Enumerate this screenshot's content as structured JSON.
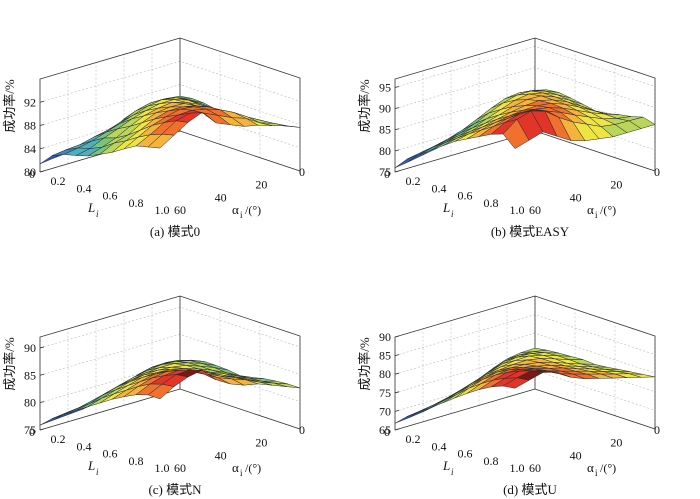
{
  "chart_data": [
    {
      "type": "surface3d",
      "caption": "(a) 模式0",
      "zlabel": "成功率/%",
      "xlabel_main": "α",
      "xlabel_sub": "i",
      "xlabel_unit": "/(°)",
      "ylabel_main": "L",
      "ylabel_sub": "i",
      "z_ticks": [
        "80",
        "84",
        "88",
        "92"
      ],
      "z_tick_values": [
        80,
        84,
        88,
        92
      ],
      "zlim": [
        80,
        96
      ],
      "alpha_ticks": [
        "0",
        "20",
        "40",
        "60"
      ],
      "L_ticks": [
        "0",
        "0.2",
        "0.4",
        "0.6",
        "0.8",
        "1.0"
      ],
      "alpha_range": [
        0,
        60
      ],
      "L_range": [
        0,
        1
      ],
      "grid_alpha": [
        0,
        6,
        12,
        18,
        24,
        30,
        36,
        42,
        48,
        54,
        60
      ],
      "grid_L": [
        0,
        0.1,
        0.2,
        0.3,
        0.4,
        0.5,
        0.6,
        0.7,
        0.8,
        0.9,
        1.0
      ],
      "z": [
        [
          86.0,
          86.3,
          86.2,
          85.8,
          85.3,
          85.2,
          86.0,
          86.3,
          86.5,
          87.0,
          87.5
        ],
        [
          86.3,
          87.1,
          87.4,
          87.4,
          87.3,
          87.2,
          87.6,
          87.8,
          88.0,
          88.2,
          88.5
        ],
        [
          86.2,
          87.6,
          88.5,
          88.8,
          88.7,
          88.6,
          88.8,
          89.0,
          89.3,
          89.0,
          89.2
        ],
        [
          85.8,
          87.6,
          88.9,
          89.6,
          89.8,
          89.8,
          90.0,
          90.5,
          90.8,
          90.5,
          90.0
        ],
        [
          84.9,
          87.0,
          88.5,
          89.6,
          90.5,
          91.0,
          91.3,
          91.8,
          92.0,
          91.3,
          90.5
        ],
        [
          83.5,
          85.9,
          87.7,
          89.1,
          90.2,
          91.1,
          91.8,
          92.5,
          92.8,
          92.4,
          91.5
        ],
        [
          82.6,
          85.1,
          86.9,
          88.4,
          89.6,
          90.8,
          91.8,
          92.8,
          93.3,
          93.5,
          92.5
        ],
        [
          82.3,
          84.6,
          86.1,
          87.4,
          88.5,
          89.8,
          91.1,
          92.2,
          93.2,
          94.2,
          95.0
        ],
        [
          81.9,
          84.0,
          85.3,
          86.5,
          87.2,
          88.4,
          89.9,
          91.4,
          92.6,
          93.6,
          94.0
        ],
        [
          81.7,
          83.8,
          84.8,
          85.4,
          86.3,
          87.7,
          88.8,
          90.1,
          91.2,
          92.0,
          92.5
        ],
        [
          81.4,
          83.5,
          84.4,
          84.9,
          85.5,
          86.5,
          87.5,
          88.8,
          90.0,
          90.5,
          91.0
        ]
      ]
    },
    {
      "type": "surface3d",
      "caption": "(b) 模式EASY",
      "zlabel": "成功率/%",
      "xlabel_main": "α",
      "xlabel_sub": "i",
      "xlabel_unit": "/(°)",
      "ylabel_main": "L",
      "ylabel_sub": "i",
      "z_ticks": [
        "75",
        "80",
        "85",
        "90",
        "95"
      ],
      "z_tick_values": [
        75,
        80,
        85,
        90,
        95
      ],
      "zlim": [
        75,
        97
      ],
      "alpha_ticks": [
        "0",
        "20",
        "40",
        "60"
      ],
      "L_ticks": [
        "0",
        "0.2",
        "0.4",
        "0.6",
        "0.8",
        "1.0"
      ],
      "alpha_range": [
        0,
        60
      ],
      "L_range": [
        0,
        1
      ],
      "grid_alpha": [
        0,
        6,
        12,
        18,
        24,
        30,
        36,
        42,
        48,
        54,
        60
      ],
      "grid_L": [
        0,
        0.1,
        0.2,
        0.3,
        0.4,
        0.5,
        0.6,
        0.7,
        0.8,
        0.9,
        1.0
      ],
      "z": [
        [
          84.1,
          85.7,
          86.0,
          85.6,
          85.1,
          84.5,
          84.8,
          85.5,
          86.0,
          86.8,
          86.0
        ],
        [
          84.3,
          86.5,
          87.3,
          87.4,
          87.1,
          86.6,
          86.5,
          86.6,
          86.5,
          86.9,
          86.0
        ],
        [
          84.0,
          86.9,
          88.3,
          88.8,
          88.8,
          88.6,
          88.3,
          87.9,
          87.4,
          87.0,
          86.0
        ],
        [
          83.1,
          86.5,
          88.3,
          89.5,
          90.0,
          90.0,
          89.9,
          89.4,
          88.8,
          87.5,
          86.0
        ],
        [
          81.6,
          85.2,
          87.4,
          89.0,
          90.1,
          90.8,
          91.1,
          90.9,
          90.2,
          89.0,
          86.5
        ],
        [
          80.0,
          83.6,
          86.0,
          87.8,
          89.4,
          90.6,
          91.5,
          92.0,
          91.8,
          90.5,
          87.0
        ],
        [
          78.7,
          82.1,
          84.5,
          86.6,
          88.4,
          90.0,
          91.4,
          92.6,
          93.1,
          92.5,
          88.0
        ],
        [
          77.7,
          81.0,
          83.3,
          85.4,
          87.4,
          89.3,
          91.0,
          92.8,
          94.3,
          95.0,
          90.0
        ],
        [
          77.1,
          80.2,
          82.4,
          84.5,
          86.5,
          88.5,
          90.4,
          92.3,
          94.3,
          96.0,
          92.0
        ],
        [
          76.5,
          79.6,
          81.8,
          83.8,
          85.8,
          87.8,
          89.6,
          91.4,
          93.3,
          95.0,
          91.0
        ],
        [
          76.0,
          79.0,
          81.0,
          83.0,
          85.0,
          87.0,
          88.5,
          90.0,
          91.5,
          92.5,
          90.0
        ]
      ]
    },
    {
      "type": "surface3d",
      "caption": "(c) 模式N",
      "zlabel": "成功率/%",
      "xlabel_main": "α",
      "xlabel_sub": "i",
      "xlabel_unit": "/(°)",
      "ylabel_main": "L",
      "ylabel_sub": "i",
      "z_ticks": [
        "75",
        "80",
        "85",
        "90"
      ],
      "z_tick_values": [
        75,
        80,
        85,
        90
      ],
      "zlim": [
        75,
        92
      ],
      "alpha_ticks": [
        "0",
        "20",
        "40",
        "60"
      ],
      "L_ticks": [
        "0",
        "0.2",
        "0.4",
        "0.6",
        "0.8",
        "1.0"
      ],
      "alpha_range": [
        0,
        60
      ],
      "L_range": [
        0,
        1
      ],
      "grid_alpha": [
        0,
        6,
        12,
        18,
        24,
        30,
        36,
        42,
        48,
        54,
        60
      ],
      "grid_L": [
        0,
        0.1,
        0.2,
        0.3,
        0.4,
        0.5,
        0.6,
        0.7,
        0.8,
        0.9,
        1.0
      ],
      "z": [
        [
          80.2,
          81.0,
          81.5,
          81.5,
          81.4,
          81.1,
          81.5,
          82.0,
          82.3,
          82.5,
          82.5
        ],
        [
          80.6,
          81.7,
          82.4,
          82.6,
          82.6,
          82.4,
          82.5,
          82.8,
          83.0,
          83.4,
          83.5
        ],
        [
          80.5,
          81.9,
          83.0,
          83.5,
          83.6,
          83.6,
          83.7,
          83.8,
          84.1,
          84.3,
          84.5
        ],
        [
          79.9,
          81.8,
          83.2,
          84.1,
          84.5,
          84.6,
          84.7,
          84.9,
          85.2,
          85.5,
          85.5
        ],
        [
          78.8,
          81.1,
          82.9,
          84.1,
          84.9,
          85.4,
          85.8,
          86.1,
          86.2,
          86.4,
          86.0
        ],
        [
          77.7,
          80.3,
          82.4,
          83.9,
          85.1,
          86.0,
          86.6,
          87.2,
          87.4,
          87.4,
          87.0
        ],
        [
          76.9,
          79.5,
          81.7,
          83.4,
          85.0,
          86.1,
          87.2,
          88.0,
          88.5,
          88.8,
          88.5
        ],
        [
          76.5,
          78.9,
          81.0,
          82.9,
          84.5,
          86.0,
          87.3,
          88.5,
          89.5,
          90.3,
          91.0
        ],
        [
          76.3,
          78.4,
          80.3,
          82.2,
          83.8,
          85.3,
          86.7,
          88.1,
          89.3,
          90.2,
          90.5
        ],
        [
          76.1,
          78.1,
          79.7,
          81.3,
          83.0,
          84.5,
          85.9,
          87.3,
          88.5,
          89.2,
          89.5
        ],
        [
          75.9,
          77.8,
          79.3,
          80.8,
          82.2,
          83.6,
          85.0,
          86.2,
          87.3,
          88.0,
          88.0
        ]
      ]
    },
    {
      "type": "surface3d",
      "caption": "(d) 模式U",
      "zlabel": "成功率/%",
      "xlabel_main": "α",
      "xlabel_sub": "i",
      "xlabel_unit": "/(°)",
      "ylabel_main": "L",
      "ylabel_sub": "i",
      "z_ticks": [
        "65",
        "70",
        "75",
        "80",
        "85",
        "90"
      ],
      "z_tick_values": [
        65,
        70,
        75,
        80,
        85,
        90
      ],
      "zlim": [
        65,
        90
      ],
      "alpha_ticks": [
        "0",
        "20",
        "40",
        "60"
      ],
      "L_ticks": [
        "0",
        "0.2",
        "0.4",
        "0.6",
        "0.8",
        "1.0"
      ],
      "alpha_range": [
        0,
        60
      ],
      "L_range": [
        0,
        1
      ],
      "grid_alpha": [
        0,
        6,
        12,
        18,
        24,
        30,
        36,
        42,
        48,
        54,
        60
      ],
      "grid_L": [
        0,
        0.1,
        0.2,
        0.3,
        0.4,
        0.5,
        0.6,
        0.7,
        0.8,
        0.9,
        1.0
      ],
      "z": [
        [
          76.0,
          76.5,
          76.8,
          77.0,
          77.2,
          77.0,
          77.3,
          77.8,
          78.2,
          78.6,
          79.0
        ],
        [
          75.9,
          77.2,
          78.0,
          78.3,
          78.3,
          78.2,
          78.5,
          78.9,
          79.4,
          79.9,
          80.0
        ],
        [
          75.3,
          77.4,
          78.9,
          79.5,
          79.6,
          79.5,
          79.7,
          80.1,
          80.5,
          80.9,
          81.0
        ],
        [
          73.9,
          76.9,
          79.0,
          80.4,
          80.8,
          80.9,
          81.0,
          81.3,
          81.7,
          82.0,
          82.0
        ],
        [
          72.2,
          75.5,
          78.4,
          80.3,
          81.5,
          81.9,
          82.2,
          82.6,
          82.8,
          83.1,
          83.0
        ],
        [
          70.6,
          74.0,
          77.2,
          79.7,
          81.4,
          82.5,
          83.1,
          83.6,
          83.9,
          84.2,
          84.0
        ],
        [
          69.3,
          72.8,
          75.9,
          78.8,
          81.0,
          82.7,
          83.9,
          84.6,
          85.1,
          85.4,
          85.5
        ],
        [
          68.4,
          71.7,
          74.6,
          77.6,
          80.3,
          82.6,
          84.3,
          85.6,
          86.5,
          87.2,
          88.0
        ],
        [
          67.7,
          70.8,
          73.5,
          76.3,
          79.1,
          81.8,
          84.0,
          85.8,
          87.2,
          88.4,
          89.0
        ],
        [
          67.2,
          70.2,
          72.7,
          75.2,
          77.8,
          80.5,
          82.8,
          84.8,
          86.4,
          87.6,
          88.0
        ],
        [
          66.8,
          69.7,
          72.0,
          74.3,
          76.6,
          79.0,
          81.3,
          83.4,
          85.2,
          86.5,
          87.0
        ]
      ]
    }
  ],
  "colors": {
    "colormap": [
      "#1c2a8c",
      "#2f59b5",
      "#3f86c8",
      "#4eb0bf",
      "#79c478",
      "#b9d65a",
      "#eee443",
      "#f6b33c",
      "#f2702d",
      "#e3342a",
      "#7a1816"
    ],
    "surface_edge": "#2a2a2a",
    "axis_line": "#333333",
    "grid_line": "#b8b8b8"
  }
}
